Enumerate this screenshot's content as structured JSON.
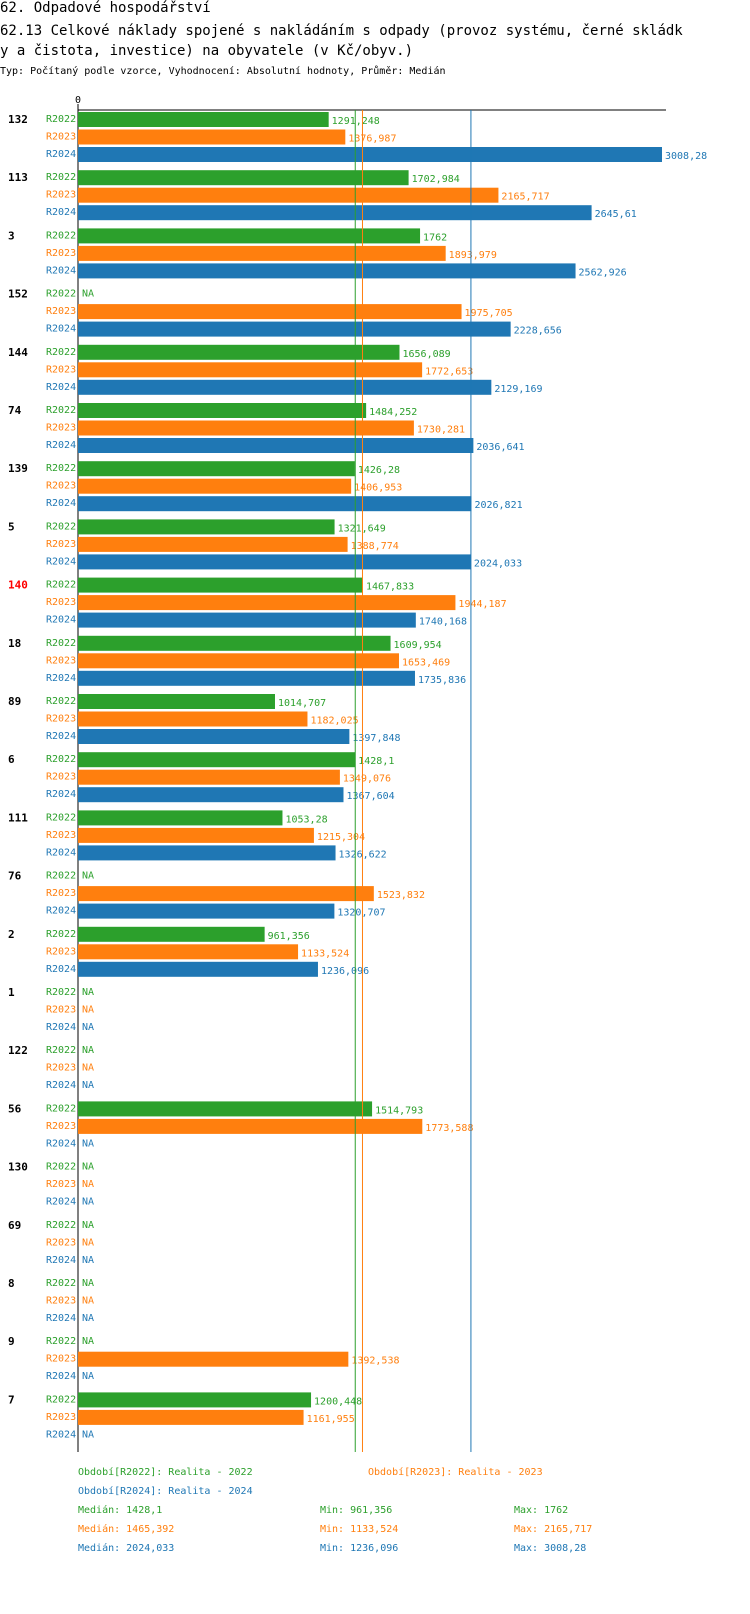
{
  "header": {
    "section": "62. Odpadové hospodářství",
    "title_line1": "62.13 Celkové náklady spojené s nakládáním s odpady (provoz systému, černé skládk",
    "title_line2": "y a čistota, investice) na obyvatele (v Kč/obyv.)",
    "subtitle": "Typ: Počítaný podle vzorce, Vyhodnocení: Absolutní hodnoty, Průměr: Medián"
  },
  "chart_data": {
    "type": "bar",
    "orientation": "horizontal",
    "axis_zero_label": "0",
    "x_max": 3008.28,
    "na_label": "NA",
    "highlight_category": "140",
    "categories": [
      "132",
      "113",
      "3",
      "152",
      "144",
      "74",
      "139",
      "5",
      "140",
      "18",
      "89",
      "6",
      "111",
      "76",
      "2",
      "1",
      "122",
      "56",
      "130",
      "69",
      "8",
      "9",
      "7"
    ],
    "series": [
      {
        "name": "R2022",
        "color": "#2ca02c",
        "values": [
          1291.248,
          1702.984,
          1762,
          null,
          1656.089,
          1484.252,
          1426.28,
          1321.649,
          1467.833,
          1609.954,
          1014.707,
          1428.1,
          1053.28,
          null,
          961.356,
          null,
          null,
          1514.793,
          null,
          null,
          null,
          null,
          1200.448
        ],
        "labels": [
          "1291,248",
          "1702,984",
          "1762",
          "NA",
          "1656,089",
          "1484,252",
          "1426,28",
          "1321,649",
          "1467,833",
          "1609,954",
          "1014,707",
          "1428,1",
          "1053,28",
          "NA",
          "961,356",
          "NA",
          "NA",
          "1514,793",
          "NA",
          "NA",
          "NA",
          "NA",
          "1200,448"
        ]
      },
      {
        "name": "R2023",
        "color": "#ff7f0e",
        "values": [
          1376.987,
          2165.717,
          1893.979,
          1975.705,
          1772.653,
          1730.281,
          1406.953,
          1388.774,
          1944.187,
          1653.469,
          1182.025,
          1349.076,
          1215.304,
          1523.832,
          1133.524,
          null,
          null,
          1773.588,
          null,
          null,
          null,
          1392.538,
          1161.955
        ],
        "labels": [
          "1376,987",
          "2165,717",
          "1893,979",
          "1975,705",
          "1772,653",
          "1730,281",
          "1406,953",
          "1388,774",
          "1944,187",
          "1653,469",
          "1182,025",
          "1349,076",
          "1215,304",
          "1523,832",
          "1133,524",
          "NA",
          "NA",
          "1773,588",
          "NA",
          "NA",
          "NA",
          "1392,538",
          "1161,955"
        ]
      },
      {
        "name": "R2024",
        "color": "#1f77b4",
        "values": [
          3008.28,
          2645.61,
          2562.926,
          2228.656,
          2129.169,
          2036.641,
          2026.821,
          2024.033,
          1740.168,
          1735.836,
          1397.848,
          1367.604,
          1326.622,
          1320.707,
          1236.096,
          null,
          null,
          null,
          null,
          null,
          null,
          null,
          null
        ],
        "labels": [
          "3008,28",
          "2645,61",
          "2562,926",
          "2228,656",
          "2129,169",
          "2036,641",
          "2026,821",
          "2024,033",
          "1740,168",
          "1735,836",
          "1397,848",
          "1367,604",
          "1326,622",
          "1320,707",
          "1236,096",
          "NA",
          "NA",
          "NA",
          "NA",
          "NA",
          "NA",
          "NA",
          "NA"
        ]
      }
    ],
    "median_lines": [
      {
        "series": "R2022",
        "value": 1428.1
      },
      {
        "series": "R2023",
        "value": 1465.392
      },
      {
        "series": "R2024",
        "value": 2024.033
      }
    ]
  },
  "legend": {
    "r2022": "Období[R2022]: Realita - 2022",
    "r2023": "Období[R2023]: Realita - 2023",
    "r2024": "Období[R2024]: Realita - 2024",
    "stats": [
      {
        "median": "Medián: 1428,1",
        "min": "Min: 961,356",
        "max": "Max: 1762",
        "color": "#2ca02c"
      },
      {
        "median": "Medián: 1465,392",
        "min": "Min: 1133,524",
        "max": "Max: 2165,717",
        "color": "#ff7f0e"
      },
      {
        "median": "Medián: 2024,033",
        "min": "Min: 1236,096",
        "max": "Max: 3008,28",
        "color": "#1f77b4"
      }
    ]
  }
}
